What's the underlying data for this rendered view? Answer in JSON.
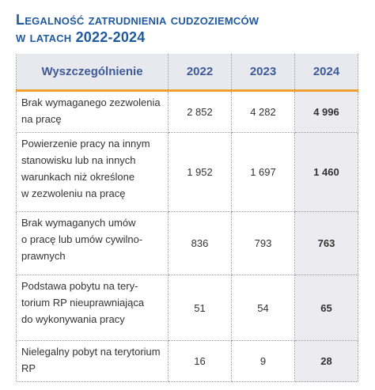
{
  "title": {
    "lines": [
      "Legalność zatrudnienia cudzoziemców",
      "w latach 2022-2024"
    ]
  },
  "table": {
    "header": [
      "Wyszczególnienie",
      "2022",
      "2023",
      "2024"
    ],
    "rows": [
      {
        "label": [
          "Brak wymaganego zezwolenia",
          "na pracę"
        ],
        "values": [
          "2 852",
          "4 282",
          "4 996"
        ]
      },
      {
        "label": [
          "Powierzenie pracy na innym",
          "stanowisku lub na innych",
          "warunkach niż określone",
          "w zezwoleniu na pracę"
        ],
        "values": [
          "1 952",
          "1 697",
          "1 460"
        ]
      },
      {
        "label": [
          "Brak wymaganych umów",
          "o pracę lub umów cywilno-",
          "prawnych"
        ],
        "values": [
          "836",
          "793",
          "763"
        ]
      },
      {
        "label": [
          "Podstawa pobytu na tery-",
          "torium RP nieuprawniająca",
          "do wykonywania pracy"
        ],
        "values": [
          "51",
          "54",
          "65"
        ]
      },
      {
        "label": [
          "Nielegalny pobyt na terytorium",
          "RP"
        ],
        "values": [
          "16",
          "9",
          "28"
        ]
      }
    ]
  }
}
